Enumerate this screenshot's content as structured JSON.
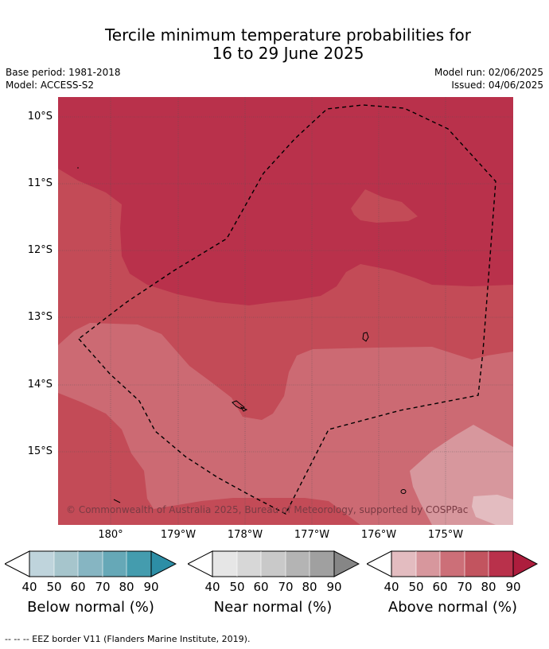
{
  "title": {
    "line1": "Tercile minimum temperature probabilities for",
    "line2": "16 to 29 June 2025"
  },
  "meta": {
    "base_period": "Base period: 1981-2018",
    "model": "Model: ACCESS-S2",
    "model_run": "Model run: 02/06/2025",
    "issued": "Issued: 04/06/2025"
  },
  "map": {
    "lat_labels": [
      "10°S",
      "11°S",
      "12°S",
      "13°S",
      "14°S",
      "15°S"
    ],
    "lon_labels": [
      "180°",
      "179°W",
      "178°W",
      "177°W",
      "176°W",
      "175°W"
    ],
    "credit": "© Commonwealth of Australia 2025, Bureau of Meteorology, supported by COSPPac",
    "category_shown": "Above normal",
    "probability_levels": [
      {
        "range": "80-90",
        "color": "#b9314b"
      },
      {
        "range": "70-80",
        "color": "#c34b57"
      },
      {
        "range": "60-70",
        "color": "#cc6a73"
      },
      {
        "range": "50-60",
        "color": "#d7979d"
      },
      {
        "range": "40-50",
        "color": "#e3bcc0"
      }
    ]
  },
  "colorbars": [
    {
      "label": "Below normal (%)",
      "ticks": [
        "40",
        "50",
        "60",
        "70",
        "80",
        "90"
      ],
      "colors": [
        "#bfd4dc",
        "#a6c5cc",
        "#86b5c2",
        "#66a8b7",
        "#449cae",
        "#2d8ea6"
      ]
    },
    {
      "label": "Near normal (%)",
      "ticks": [
        "40",
        "50",
        "60",
        "70",
        "80",
        "90"
      ],
      "colors": [
        "#e6e6e6",
        "#d7d7d7",
        "#c9c9c9",
        "#b4b4b4",
        "#a0a0a0",
        "#868686"
      ]
    },
    {
      "label": "Above normal (%)",
      "ticks": [
        "40",
        "50",
        "60",
        "70",
        "80",
        "90"
      ],
      "colors": [
        "#e3bcc0",
        "#d7979d",
        "#cc6f78",
        "#c2545f",
        "#b9314b",
        "#ad1d3d"
      ]
    }
  ],
  "footnote": "--  --  -- EEZ border V11 (Flanders Marine Institute, 2019)."
}
